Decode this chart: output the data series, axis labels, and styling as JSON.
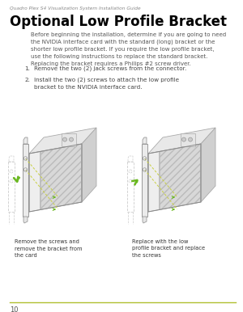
{
  "bg_color": "#ffffff",
  "header_text": "Quadro Plex S4 Visualization System Installation Guide",
  "title_text": "Optional Low Profile Bracket",
  "body_text": "Before beginning the installation, determine if you are going to need\nthe NVIDIA interface card with the standard (long) bracket or the\nshorter low profile bracket. If you require the low profile bracket,\nuse the following instructions to replace the standard bracket.\nReplacing the bracket requires a Philips #2 screw driver.",
  "step1": "Remove the two (2) jack screws from the connector.",
  "step2": "Install the two (2) screws to attach the low profile\nbracket to the NVIDIA interface card.",
  "caption1": "Remove the screws and\nremove the bracket from\nthe card",
  "caption2": "Replace with the low\nprofile bracket and replace\nthe screws",
  "footer_text": "10",
  "footer_line_color": "#b0c030",
  "header_color": "#888888",
  "title_color": "#000000",
  "body_color": "#555555",
  "step_color": "#444444",
  "caption_color": "#333333",
  "arrow_color": "#6ab820",
  "bracket_outline": "#999999",
  "card_outline": "#aaaaaa"
}
